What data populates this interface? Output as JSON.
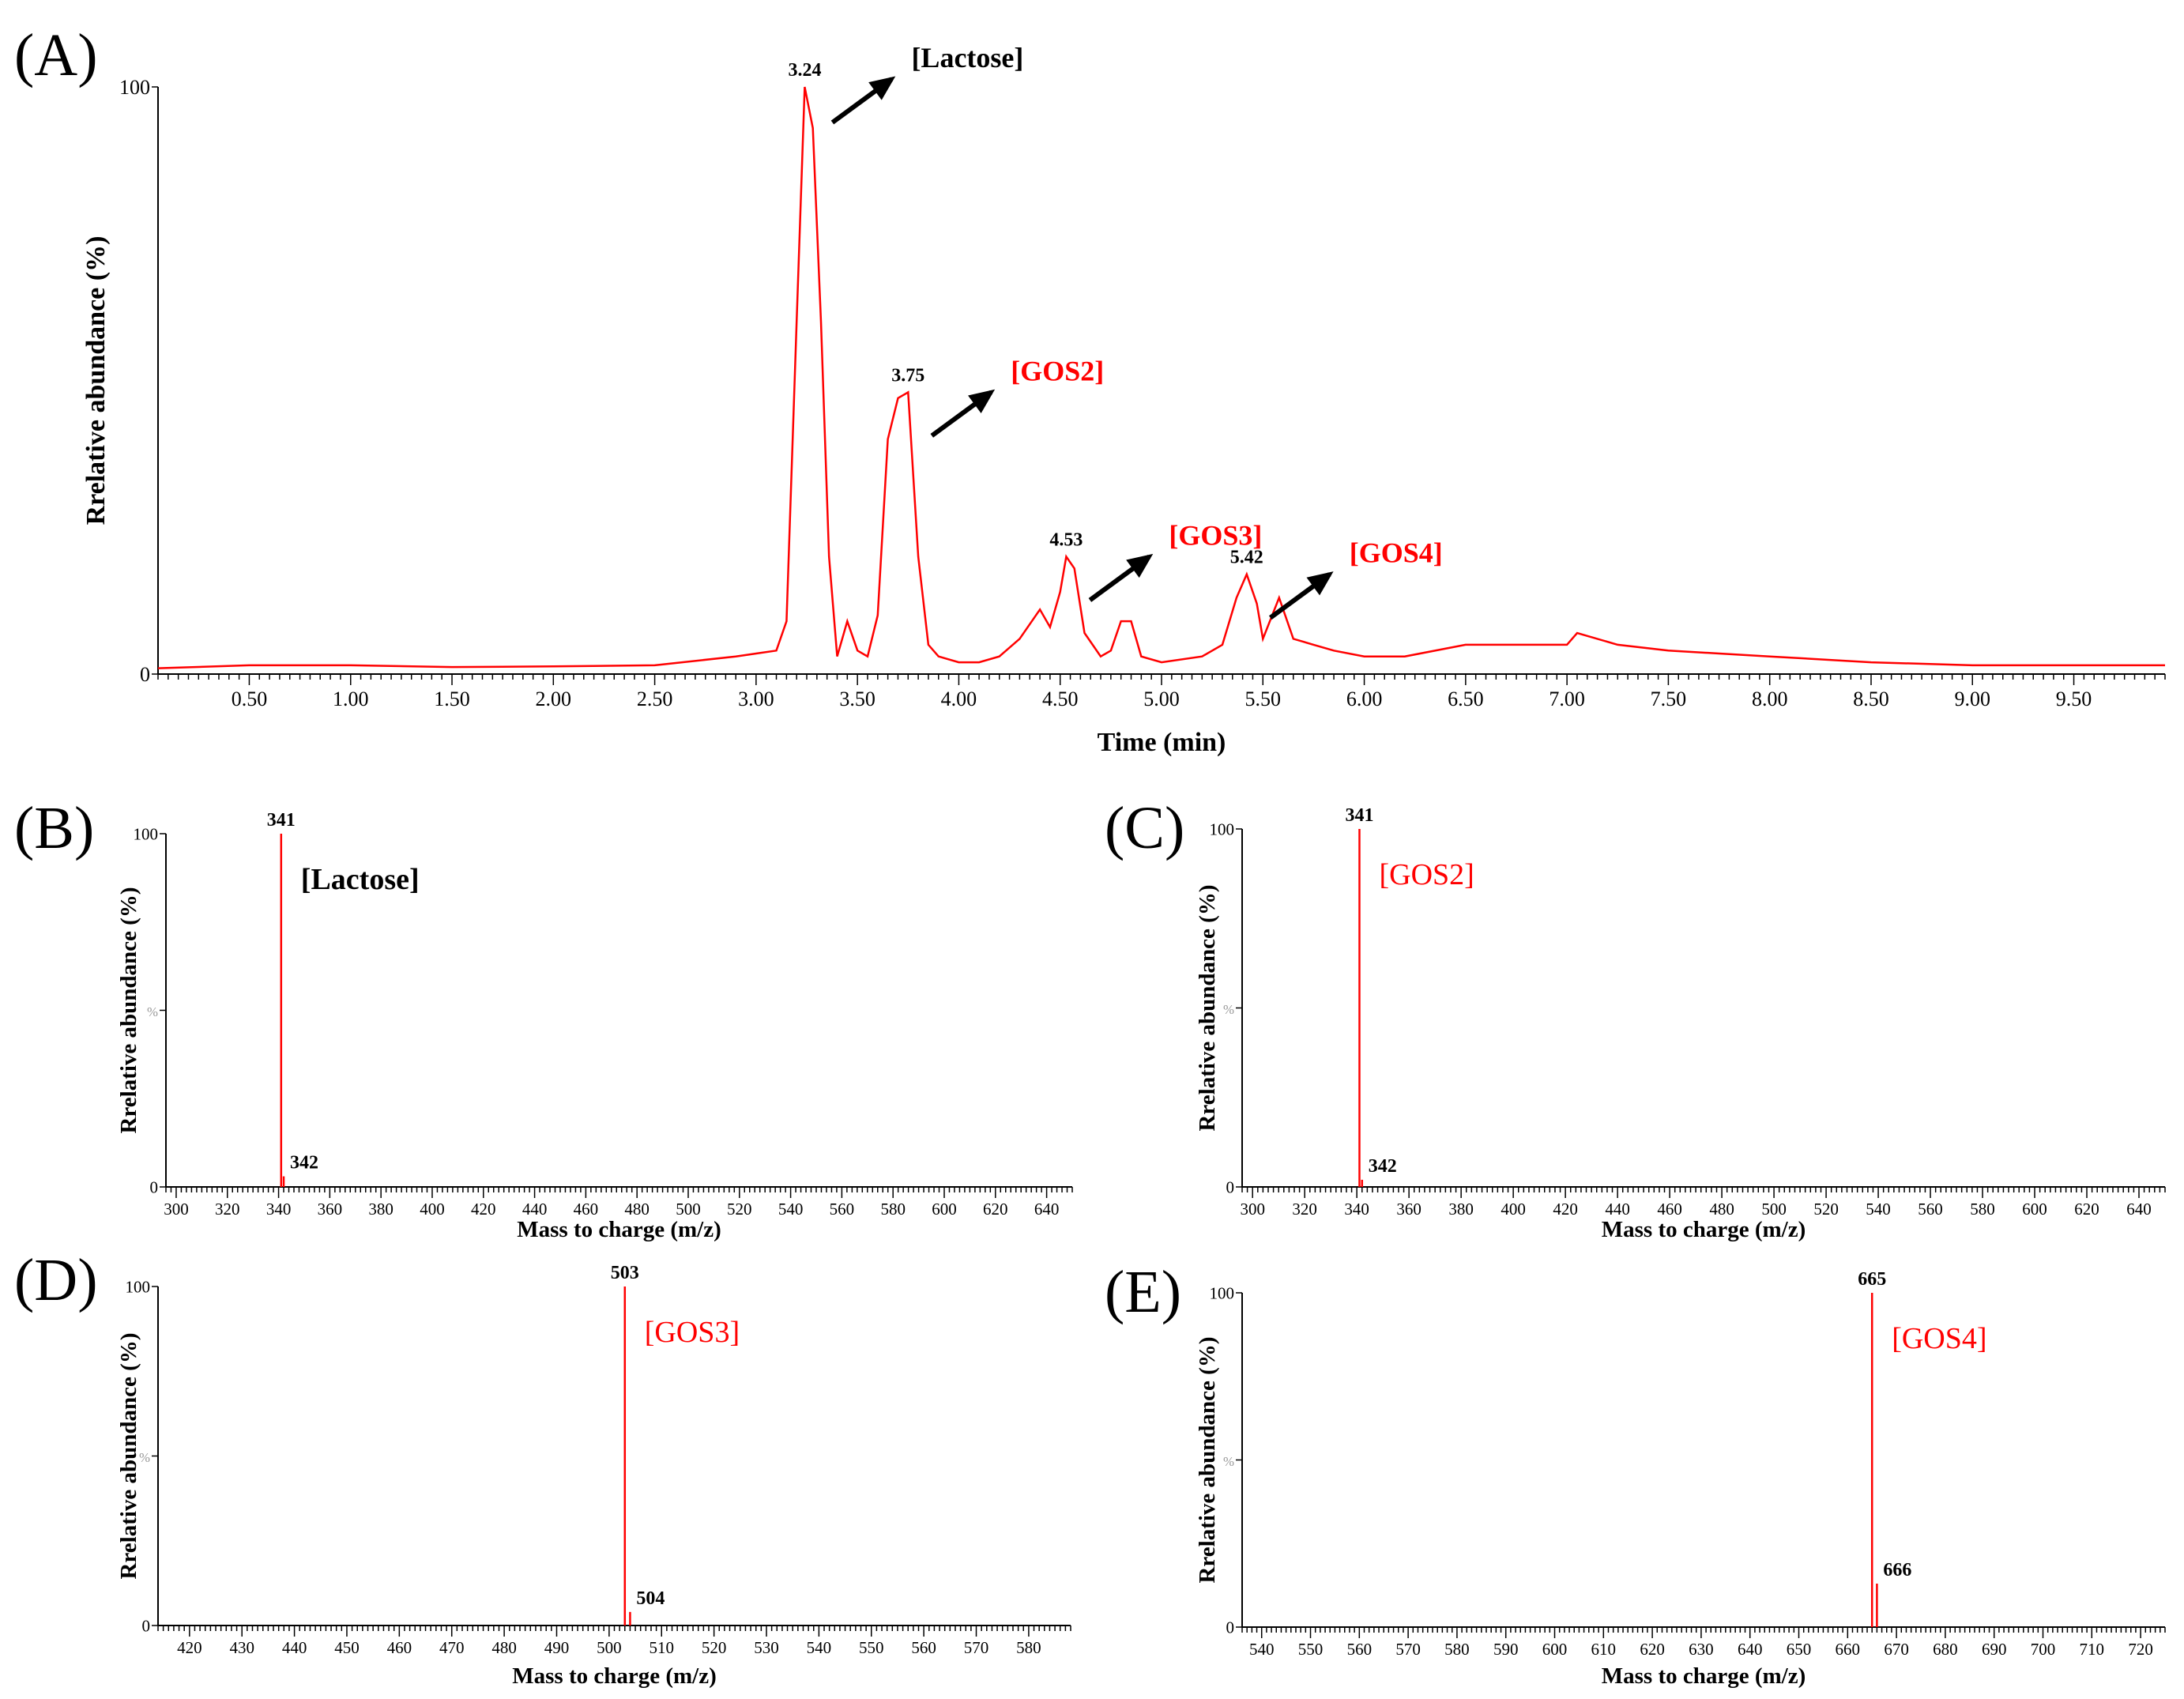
{
  "colors": {
    "trace": "#ff0000",
    "axis": "#000000",
    "label_red": "#ff0000",
    "label_black": "#000000"
  },
  "chart_data": [
    {
      "panel": "(A)",
      "type": "line",
      "xlabel": "Time (min)",
      "ylabel": "Rrelative abundance (%)",
      "xlim": [
        0.05,
        9.95
      ],
      "ylim": [
        0,
        100
      ],
      "xticks": [
        "0.50",
        "1.00",
        "1.50",
        "2.00",
        "2.50",
        "3.00",
        "3.50",
        "4.00",
        "4.50",
        "5.00",
        "5.50",
        "6.00",
        "6.50",
        "7.00",
        "7.50",
        "8.00",
        "8.50",
        "9.00",
        "9.50"
      ],
      "yticks": [
        "0",
        "100"
      ],
      "x": [
        0.05,
        0.5,
        1.0,
        1.5,
        2.0,
        2.5,
        2.9,
        3.0,
        3.1,
        3.15,
        3.2,
        3.24,
        3.28,
        3.32,
        3.36,
        3.4,
        3.45,
        3.5,
        3.55,
        3.6,
        3.65,
        3.7,
        3.75,
        3.8,
        3.85,
        3.9,
        4.0,
        4.1,
        4.2,
        4.3,
        4.4,
        4.45,
        4.5,
        4.53,
        4.57,
        4.62,
        4.7,
        4.75,
        4.8,
        4.85,
        4.9,
        5.0,
        5.2,
        5.3,
        5.37,
        5.42,
        5.47,
        5.5,
        5.58,
        5.65,
        5.75,
        5.85,
        6.0,
        6.2,
        6.5,
        6.7,
        7.0,
        7.05,
        7.25,
        7.5,
        8.0,
        8.5,
        9.0,
        9.5,
        9.95
      ],
      "y": [
        1,
        1.5,
        1.5,
        1.2,
        1.3,
        1.5,
        3,
        3.5,
        4,
        9,
        60,
        100,
        93,
        60,
        20,
        3,
        9,
        4,
        3,
        10,
        40,
        47,
        48,
        20,
        5,
        3,
        2,
        2,
        3,
        6,
        11,
        8,
        14,
        20,
        18,
        7,
        3,
        4,
        9,
        9,
        3,
        2,
        3,
        5,
        13,
        17,
        12,
        6,
        13,
        6,
        5,
        4,
        3,
        3,
        5,
        5,
        5,
        7,
        5,
        4,
        3,
        2,
        1.5,
        1.5,
        1.5
      ],
      "peaks": [
        {
          "x": 3.24,
          "label": "3.24",
          "tag": "[Lactose]"
        },
        {
          "x": 3.75,
          "label": "3.75",
          "tag": "[GOS2]"
        },
        {
          "x": 4.53,
          "label": "4.53",
          "tag": "[GOS3]"
        },
        {
          "x": 5.42,
          "label": "5.42",
          "tag": "[GOS4]"
        }
      ]
    },
    {
      "panel": "(B)",
      "type": "bar",
      "xlabel": "Mass to charge (m/z)",
      "ylabel": "Rrelative abundance (%)",
      "xlim": [
        296,
        650
      ],
      "ylim": [
        0,
        100
      ],
      "xticks": [
        "300",
        "320",
        "340",
        "360",
        "380",
        "400",
        "420",
        "440",
        "460",
        "480",
        "500",
        "520",
        "540",
        "560",
        "580",
        "600",
        "620",
        "640"
      ],
      "yticks": [
        "0",
        "%",
        "100"
      ],
      "x": [
        341,
        342
      ],
      "y": [
        100,
        3
      ],
      "labels": [
        "341",
        "342"
      ],
      "tag": "[Lactose]"
    },
    {
      "panel": "(C)",
      "type": "bar",
      "xlabel": "Mass to charge (m/z)",
      "ylabel": "Rrelative abundance (%)",
      "xlim": [
        296,
        650
      ],
      "ylim": [
        0,
        100
      ],
      "xticks": [
        "300",
        "320",
        "340",
        "360",
        "380",
        "400",
        "420",
        "440",
        "460",
        "480",
        "500",
        "520",
        "540",
        "560",
        "580",
        "600",
        "620",
        "640"
      ],
      "yticks": [
        "0",
        "%",
        "100"
      ],
      "x": [
        341,
        342
      ],
      "y": [
        100,
        2
      ],
      "labels": [
        "341",
        "342"
      ],
      "tag": "[GOS2]"
    },
    {
      "panel": "(D)",
      "type": "bar",
      "xlabel": "Mass to charge (m/z)",
      "ylabel": "Rrelative abundance (%)",
      "xlim": [
        414,
        588
      ],
      "ylim": [
        0,
        100
      ],
      "xticks": [
        "420",
        "430",
        "440",
        "450",
        "460",
        "470",
        "480",
        "490",
        "500",
        "510",
        "520",
        "530",
        "540",
        "550",
        "560",
        "570",
        "580"
      ],
      "yticks": [
        "0",
        "%",
        "100"
      ],
      "x": [
        503,
        504
      ],
      "y": [
        100,
        4
      ],
      "labels": [
        "503",
        "504"
      ],
      "tag": "[GOS3]"
    },
    {
      "panel": "(E)",
      "type": "bar",
      "xlabel": "Mass to charge (m/z)",
      "ylabel": "Rrelative abundance (%)",
      "xlim": [
        536,
        725
      ],
      "ylim": [
        0,
        100
      ],
      "xticks": [
        "540",
        "550",
        "560",
        "570",
        "580",
        "590",
        "600",
        "610",
        "620",
        "630",
        "640",
        "650",
        "660",
        "670",
        "680",
        "690",
        "700",
        "710",
        "720"
      ],
      "yticks": [
        "0",
        "%",
        "100"
      ],
      "x": [
        665,
        666
      ],
      "y": [
        100,
        13
      ],
      "labels": [
        "665",
        "666"
      ],
      "tag": "[GOS4]"
    }
  ]
}
